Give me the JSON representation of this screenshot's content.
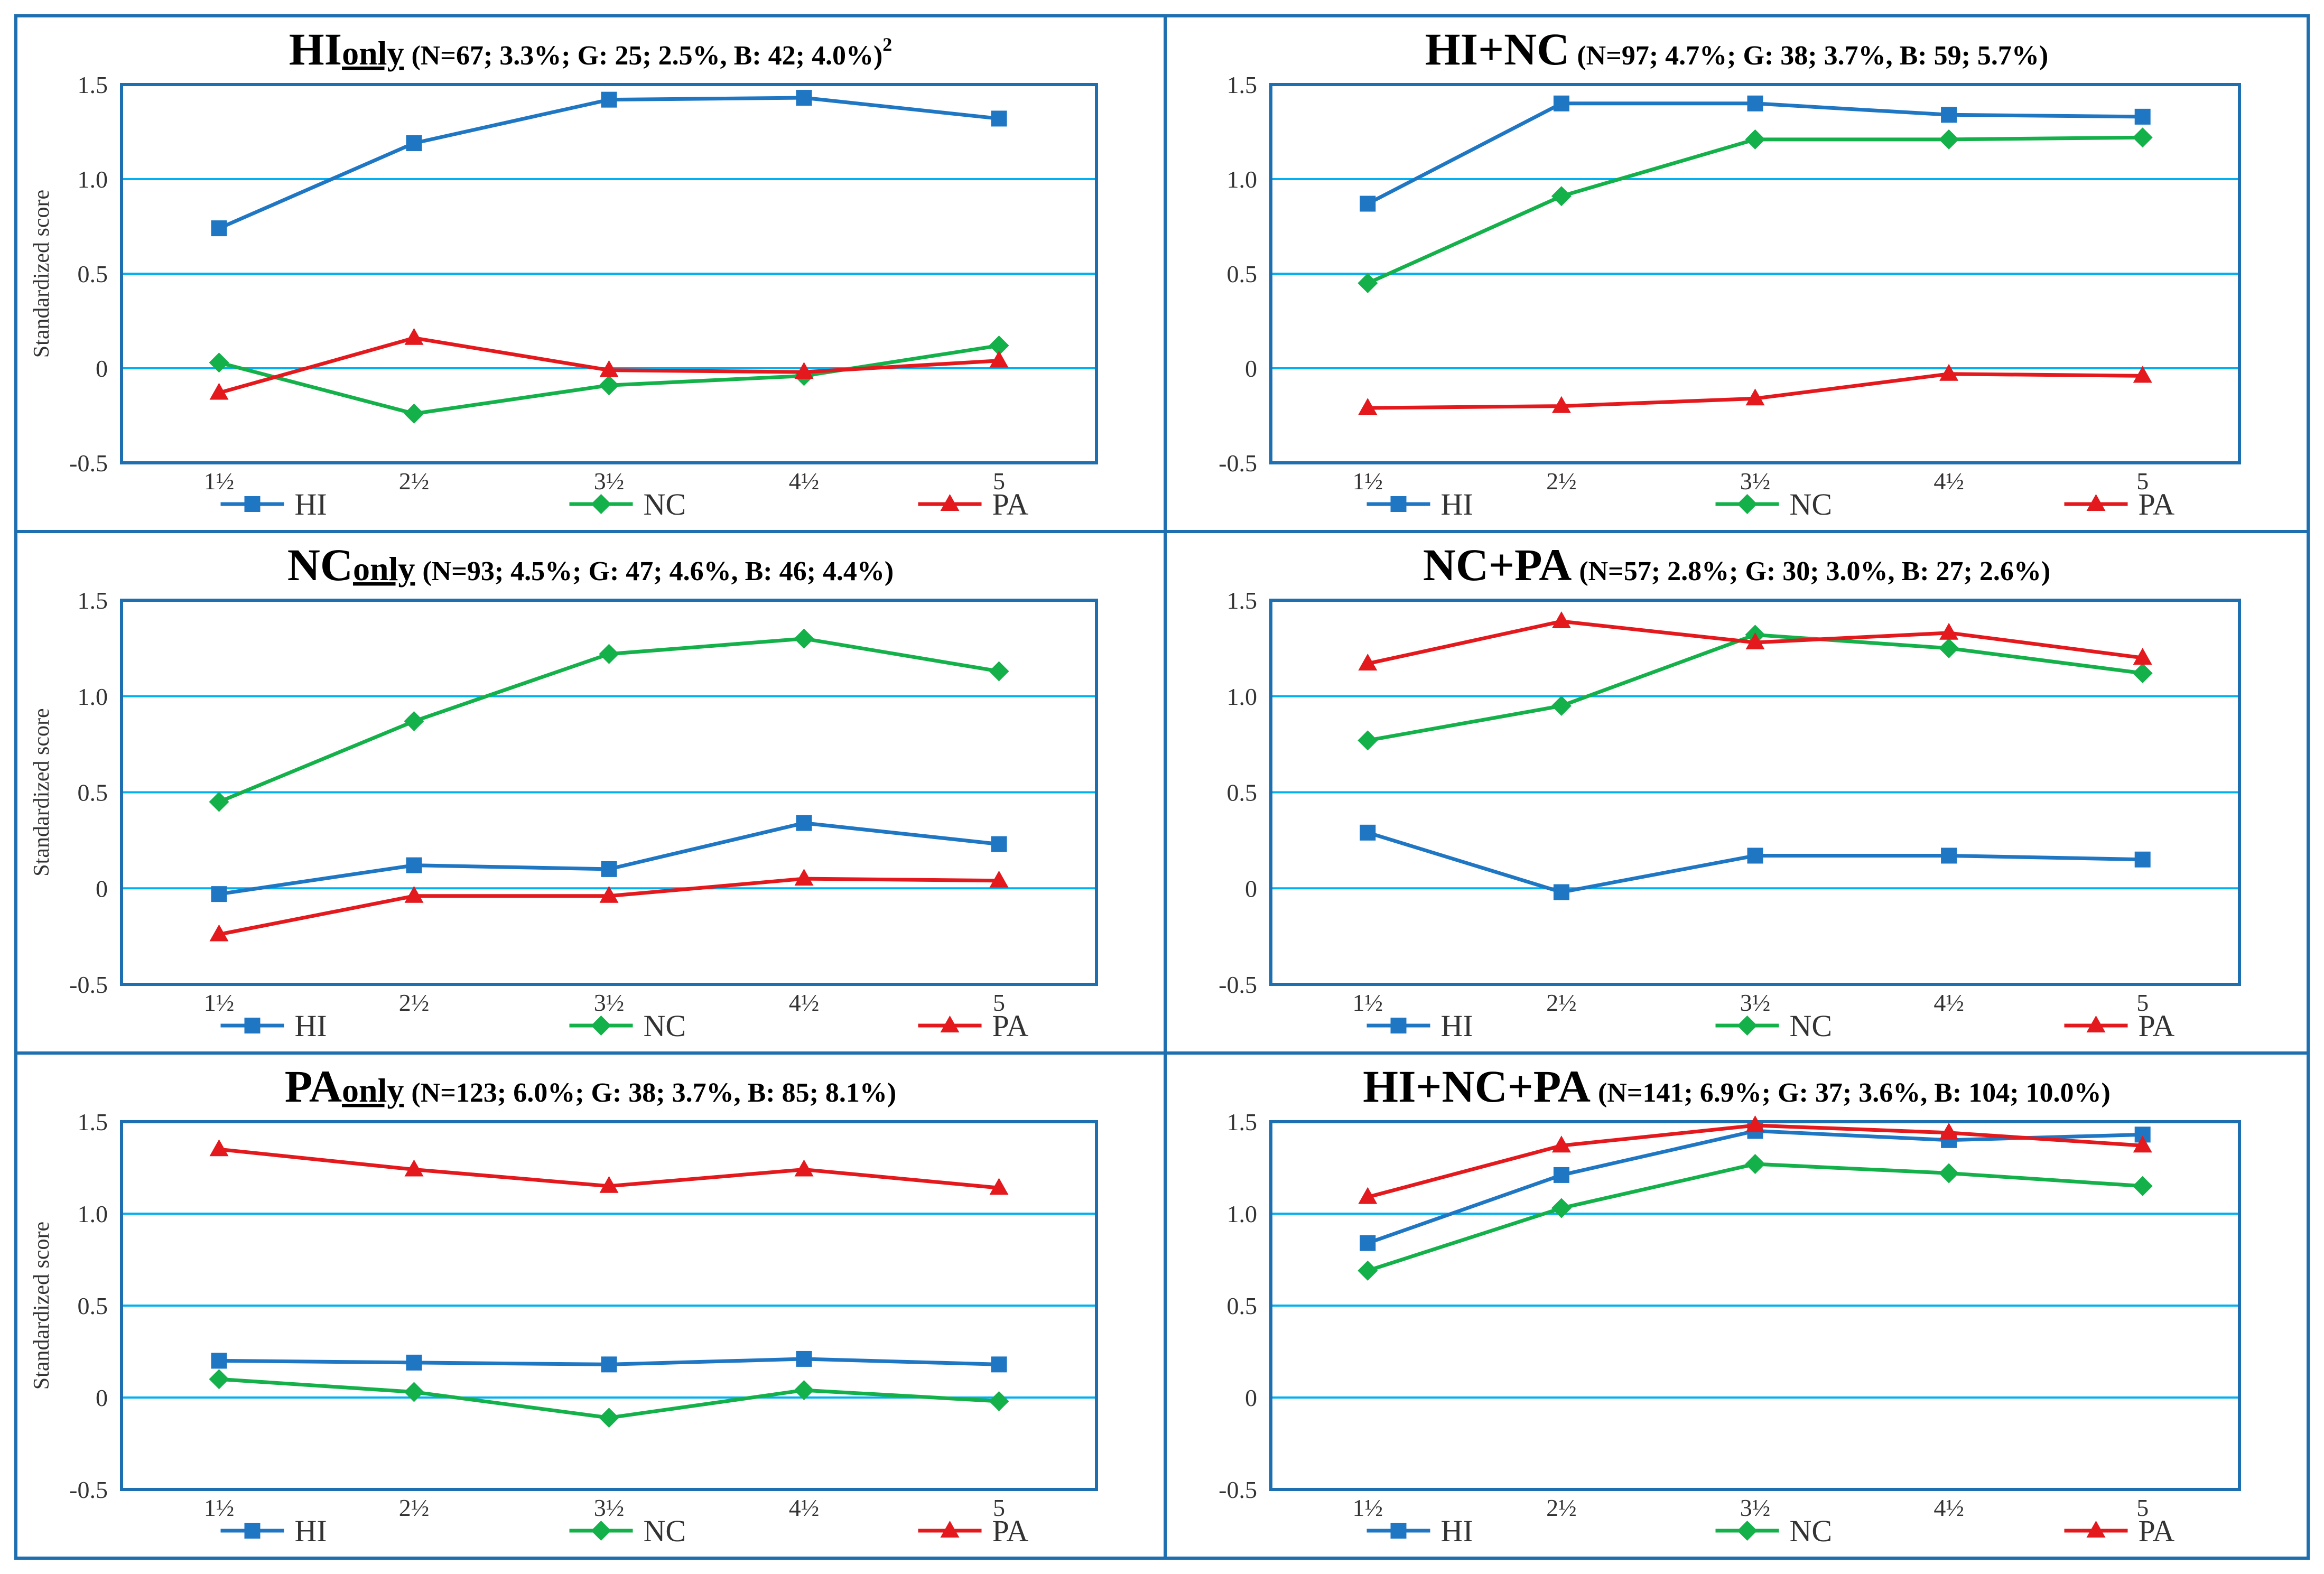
{
  "colors": {
    "HI": "#1f77c4",
    "NC": "#14b14b",
    "PA": "#e3191d",
    "frame": "#1e6fb0",
    "grid": "#00b0f0"
  },
  "chart_data": [
    {
      "type": "line",
      "title": "HI",
      "title_sub": "only",
      "title_stats": "(N=67; 3.3%; G: 25; 2.5%, B: 42; 4.0%)",
      "title_sup": "2",
      "ylabel": "Standardized score",
      "xlabel": "",
      "ylim": [
        -0.5,
        1.5
      ],
      "y_ticks": [
        "1.5",
        "1.0",
        "0.5",
        "0",
        "-0.5"
      ],
      "categories": [
        "1½",
        "2½",
        "3½",
        "4½",
        "5"
      ],
      "series": [
        {
          "name": "HI",
          "marker": "square",
          "values": [
            0.74,
            1.19,
            1.42,
            1.43,
            1.32
          ]
        },
        {
          "name": "NC",
          "marker": "diamond",
          "values": [
            0.03,
            -0.24,
            -0.09,
            -0.04,
            0.12
          ]
        },
        {
          "name": "PA",
          "marker": "triangle",
          "values": [
            -0.13,
            0.16,
            -0.01,
            -0.02,
            0.04
          ]
        }
      ],
      "legend": "bottom"
    },
    {
      "type": "line",
      "title": "HI+NC",
      "title_sub": "",
      "title_stats": "(N=97; 4.7%; G: 38; 3.7%, B: 59; 5.7%)",
      "title_sup": "",
      "ylabel": "",
      "xlabel": "",
      "ylim": [
        -0.5,
        1.5
      ],
      "y_ticks": [
        "1.5",
        "1.0",
        "0.5",
        "0",
        "-0.5"
      ],
      "categories": [
        "1½",
        "2½",
        "3½",
        "4½",
        "5"
      ],
      "series": [
        {
          "name": "HI",
          "marker": "square",
          "values": [
            0.87,
            1.4,
            1.4,
            1.34,
            1.33
          ]
        },
        {
          "name": "NC",
          "marker": "diamond",
          "values": [
            0.45,
            0.91,
            1.21,
            1.21,
            1.22
          ]
        },
        {
          "name": "PA",
          "marker": "triangle",
          "values": [
            -0.21,
            -0.2,
            -0.16,
            -0.03,
            -0.04
          ]
        }
      ],
      "legend": "bottom"
    },
    {
      "type": "line",
      "title": "NC",
      "title_sub": "only",
      "title_stats": "(N=93; 4.5%; G: 47; 4.6%, B: 46; 4.4%)",
      "title_sup": "",
      "ylabel": "Standardized score",
      "xlabel": "",
      "ylim": [
        -0.5,
        1.5
      ],
      "y_ticks": [
        "1.5",
        "1.0",
        "0.5",
        "0",
        "-0.5"
      ],
      "categories": [
        "1½",
        "2½",
        "3½",
        "4½",
        "5"
      ],
      "series": [
        {
          "name": "HI",
          "marker": "square",
          "values": [
            -0.03,
            0.12,
            0.1,
            0.34,
            0.23
          ]
        },
        {
          "name": "NC",
          "marker": "diamond",
          "values": [
            0.45,
            0.87,
            1.22,
            1.3,
            1.13
          ]
        },
        {
          "name": "PA",
          "marker": "triangle",
          "values": [
            -0.24,
            -0.04,
            -0.04,
            0.05,
            0.04
          ]
        }
      ],
      "legend": "bottom"
    },
    {
      "type": "line",
      "title": "NC+PA",
      "title_sub": "",
      "title_stats": "(N=57; 2.8%; G: 30; 3.0%, B: 27; 2.6%)",
      "title_sup": "",
      "ylabel": "",
      "xlabel": "",
      "ylim": [
        -0.5,
        1.5
      ],
      "y_ticks": [
        "1.5",
        "1.0",
        "0.5",
        "0",
        "-0.5"
      ],
      "categories": [
        "1½",
        "2½",
        "3½",
        "4½",
        "5"
      ],
      "series": [
        {
          "name": "HI",
          "marker": "square",
          "values": [
            0.29,
            -0.02,
            0.17,
            0.17,
            0.15
          ]
        },
        {
          "name": "NC",
          "marker": "diamond",
          "values": [
            0.77,
            0.95,
            1.32,
            1.25,
            1.12
          ]
        },
        {
          "name": "PA",
          "marker": "triangle",
          "values": [
            1.17,
            1.39,
            1.28,
            1.33,
            1.2
          ]
        }
      ],
      "legend": "bottom"
    },
    {
      "type": "line",
      "title": "PA",
      "title_sub": "only",
      "title_stats": "(N=123; 6.0%; G: 38; 3.7%, B: 85; 8.1%)",
      "title_sup": "",
      "ylabel": "Standardized score",
      "xlabel": "",
      "ylim": [
        -0.5,
        1.5
      ],
      "y_ticks": [
        "1.5",
        "1.0",
        "0.5",
        "0",
        "-0.5"
      ],
      "categories": [
        "1½",
        "2½",
        "3½",
        "4½",
        "5"
      ],
      "series": [
        {
          "name": "HI",
          "marker": "square",
          "values": [
            0.2,
            0.19,
            0.18,
            0.21,
            0.18
          ]
        },
        {
          "name": "NC",
          "marker": "diamond",
          "values": [
            0.1,
            0.03,
            -0.11,
            0.04,
            -0.02
          ]
        },
        {
          "name": "PA",
          "marker": "triangle",
          "values": [
            1.35,
            1.24,
            1.15,
            1.24,
            1.14
          ]
        }
      ],
      "legend": "bottom"
    },
    {
      "type": "line",
      "title": "HI+NC+PA",
      "title_sub": "",
      "title_stats": "(N=141; 6.9%; G: 37; 3.6%, B: 104; 10.0%)",
      "title_sup": "",
      "ylabel": "",
      "xlabel": "",
      "ylim": [
        -0.5,
        1.5
      ],
      "y_ticks": [
        "1.5",
        "1.0",
        "0.5",
        "0",
        "-0.5"
      ],
      "categories": [
        "1½",
        "2½",
        "3½",
        "4½",
        "5"
      ],
      "series": [
        {
          "name": "HI",
          "marker": "square",
          "values": [
            0.84,
            1.21,
            1.45,
            1.4,
            1.43
          ]
        },
        {
          "name": "NC",
          "marker": "diamond",
          "values": [
            0.69,
            1.03,
            1.27,
            1.22,
            1.15
          ]
        },
        {
          "name": "PA",
          "marker": "triangle",
          "values": [
            1.09,
            1.37,
            1.48,
            1.44,
            1.37
          ]
        }
      ],
      "legend": "bottom"
    }
  ]
}
